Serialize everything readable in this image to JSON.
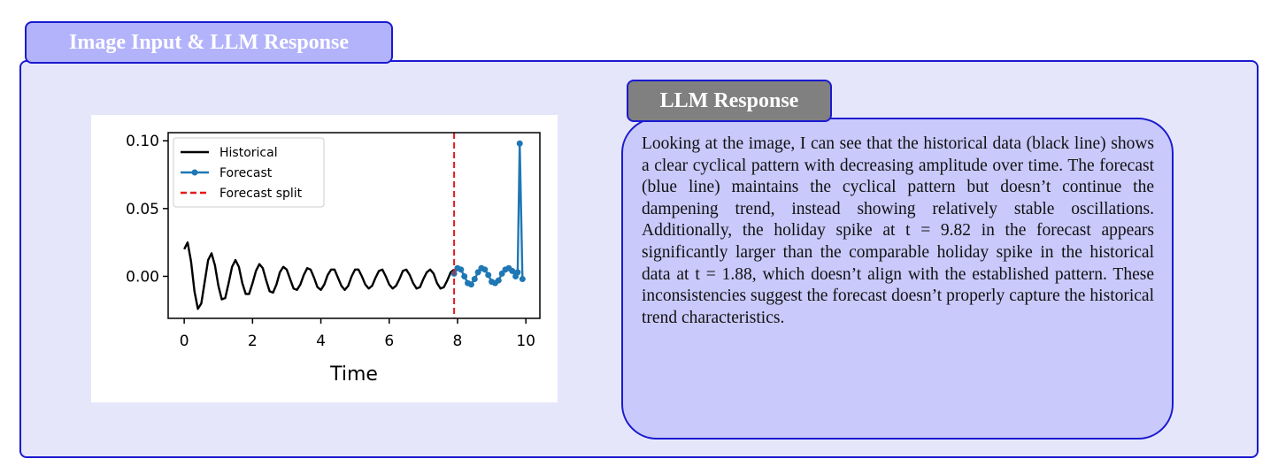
{
  "header": {
    "title": "Image Input & LLM Response"
  },
  "response": {
    "title": "LLM Response",
    "text": "Looking at the image, I can see that the historical data (black line) shows a clear cyclical pattern with decreasing amplitude over time. The forecast (blue line) maintains the cyclical pattern but doesn’t continue the dampening trend, instead showing relatively stable oscillations. Additionally, the holiday spike at t = 9.82 in the forecast appears significantly larger than the comparable holiday spike in the historical data at t = 1.88, which doesn’t align with the established pattern. These inconsistencies suggest the forecast doesn’t properly capture the historical trend characteristics."
  },
  "chart_data": {
    "type": "line",
    "xlabel": "Time",
    "xlim": [
      -0.47,
      10.41
    ],
    "ylim": [
      -0.031,
      0.106
    ],
    "xticks": [
      0,
      2,
      4,
      6,
      8,
      10
    ],
    "yticks": [
      {
        "value": 0,
        "label": "0.00"
      },
      {
        "value": 0.05,
        "label": "0.05"
      },
      {
        "value": 0.1,
        "label": "0.10"
      }
    ],
    "legend": "upper left",
    "series": [
      {
        "name": "Historical",
        "color": "#000000",
        "x": [
          0,
          0.1,
          0.2,
          0.3,
          0.4,
          0.5,
          0.6,
          0.7,
          0.8,
          0.9,
          1,
          1.1,
          1.2,
          1.3,
          1.4,
          1.5,
          1.6,
          1.7,
          1.8,
          1.9,
          2,
          2.1,
          2.2,
          2.3,
          2.4,
          2.5,
          2.6,
          2.7,
          2.8,
          2.9,
          3,
          3.1,
          3.2,
          3.3,
          3.4,
          3.5,
          3.6,
          3.7,
          3.8,
          3.9,
          4,
          4.1,
          4.2,
          4.3,
          4.4,
          4.5,
          4.6,
          4.7,
          4.8,
          4.9,
          5,
          5.1,
          5.2,
          5.3,
          5.4,
          5.5,
          5.6,
          5.7,
          5.8,
          5.9,
          6,
          6.1,
          6.2,
          6.3,
          6.4,
          6.5,
          6.6,
          6.7,
          6.8,
          6.9,
          7,
          7.1,
          7.2,
          7.3,
          7.4,
          7.5,
          7.6,
          7.7,
          7.8,
          7.9
        ],
        "values": [
          0.02,
          0.025,
          0.011,
          -0.011,
          -0.024,
          -0.02,
          -0.004,
          0.012,
          0.017,
          0.008,
          -0.007,
          -0.017,
          -0.016,
          -0.005,
          0.007,
          0.012,
          0.007,
          -0.005,
          -0.013,
          -0.013,
          -0.005,
          0.004,
          0.009,
          0.006,
          -0.003,
          -0.011,
          -0.012,
          -0.006,
          0.003,
          0.007,
          0.005,
          -0.002,
          -0.009,
          -0.01,
          -0.006,
          0.001,
          0.006,
          0.005,
          -0.001,
          -0.008,
          -0.01,
          -0.006,
          0.001,
          0.005,
          0.005,
          -0.001,
          -0.007,
          -0.01,
          -0.007,
          0.0,
          0.005,
          0.005,
          0.0,
          -0.006,
          -0.009,
          -0.007,
          -0.001,
          0.004,
          0.005,
          0.0,
          -0.006,
          -0.009,
          -0.007,
          -0.002,
          0.004,
          0.005,
          0.001,
          -0.005,
          -0.009,
          -0.008,
          -0.002,
          0.003,
          0.005,
          0.002,
          -0.005,
          -0.009,
          -0.008,
          -0.003,
          0.003,
          0.005
        ]
      },
      {
        "name": "Forecast",
        "color": "#1f77b4",
        "marker": true,
        "x": [
          7.9,
          8,
          8.1,
          8.2,
          8.3,
          8.4,
          8.5,
          8.6,
          8.7,
          8.8,
          8.9,
          9,
          9.1,
          9.2,
          9.3,
          9.4,
          9.5,
          9.6,
          9.7,
          9.76,
          9.82,
          9.9
        ],
        "values": [
          0.002,
          0.006,
          0.005,
          0.0,
          -0.005,
          -0.006,
          -0.002,
          0.003,
          0.006,
          0.005,
          0.001,
          -0.004,
          -0.005,
          -0.003,
          0.002,
          0.005,
          0.006,
          0.004,
          0.0,
          0.003,
          0.098,
          -0.002
        ]
      },
      {
        "name": "Forecast split",
        "color": "#e41a1c",
        "dash": true,
        "vline": true,
        "x": 7.9
      }
    ]
  }
}
